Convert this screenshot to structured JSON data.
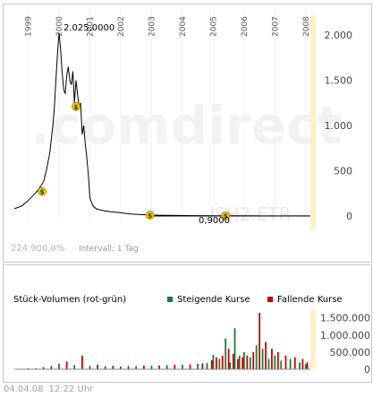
{
  "price_chart": {
    "watermark": ".comdirect",
    "ticker": "ISH2.ETR",
    "peak_label": "2.025,0000",
    "last_label": "0,9000",
    "info_value": "224.900,0%",
    "info_interval": "Intervall: 1 Tag",
    "accent_color": "#fff0c8",
    "line_color": "#000000"
  },
  "volume_chart": {
    "title": "Stück-Volumen (rot-grün)",
    "legend_up": "Steigende Kurse",
    "legend_down": "Fallende Kurse",
    "up_color": "#1a7a3a",
    "down_color": "#cc0000"
  },
  "footer": {
    "date": "04.04.08",
    "time": "12:22 Uhr"
  },
  "chart_data": [
    {
      "type": "line",
      "title": "",
      "xlabel": "",
      "ylabel": "",
      "x_ticks": [
        "1999",
        "2000",
        "2001",
        "2002",
        "2003",
        "2004",
        "2005",
        "2006",
        "2007",
        "2008"
      ],
      "x_tick_years": [
        1999,
        2000,
        2001,
        2002,
        2003,
        2004,
        2005,
        2006,
        2007,
        2008
      ],
      "y_ticks": [
        0,
        500,
        1000,
        1500,
        2000
      ],
      "y_tick_labels": [
        "0",
        "500",
        "1.000",
        "1.500",
        "2.000"
      ],
      "xlim": [
        1998.55,
        2008.15
      ],
      "ylim": [
        -60,
        2100
      ],
      "grid": false,
      "x": [
        1998.55,
        1998.8,
        1999.0,
        1999.2,
        1999.35,
        1999.5,
        1999.6,
        1999.7,
        1999.75,
        1999.8,
        1999.85,
        1999.9,
        1999.95,
        2000.0,
        2000.05,
        2000.1,
        2000.15,
        2000.2,
        2000.25,
        2000.3,
        2000.35,
        2000.4,
        2000.45,
        2000.5,
        2000.55,
        2000.6,
        2000.65,
        2000.7,
        2000.75,
        2000.8,
        2000.85,
        2000.9,
        2000.95,
        2001.0,
        2001.1,
        2001.2,
        2001.3,
        2001.5,
        2001.7,
        2002.0,
        2002.3,
        2002.6,
        2002.9,
        2003.2,
        2003.5,
        2003.8,
        2004.1,
        2004.5,
        2005.0,
        2005.3,
        2005.5,
        2005.8,
        2006.2,
        2006.6,
        2007.0,
        2007.5,
        2008.0,
        2008.1
      ],
      "values": [
        80,
        110,
        170,
        240,
        300,
        380,
        520,
        700,
        850,
        1000,
        1200,
        1500,
        1800,
        2025,
        1850,
        1600,
        1400,
        1350,
        1550,
        1650,
        1500,
        1450,
        1600,
        1250,
        1500,
        1350,
        1200,
        1250,
        900,
        1000,
        800,
        650,
        450,
        200,
        110,
        80,
        70,
        55,
        45,
        35,
        22,
        15,
        10,
        8,
        6,
        5,
        4,
        3,
        2.5,
        2,
        1.5,
        1.2,
        1,
        0.9,
        0.9,
        0.9,
        0.9,
        0.9
      ],
      "markers": [
        {
          "x": 1999.45,
          "y": 270,
          "label": "$"
        },
        {
          "x": 2000.55,
          "y": 1210,
          "label": "$"
        },
        {
          "x": 2002.95,
          "y": 10,
          "label": "$"
        },
        {
          "x": 2005.4,
          "y": 2,
          "label": "$"
        }
      ]
    },
    {
      "type": "bar",
      "title": "Stück-Volumen (rot-grün)",
      "y_ticks": [
        0,
        500000,
        1000000,
        1500000
      ],
      "y_tick_labels": [
        "0",
        "500.000",
        "1.000.000",
        "1.500.000"
      ],
      "ylim": [
        0,
        1650000
      ],
      "xlim": [
        1998.55,
        2008.15
      ],
      "series": [
        {
          "name": "Steigende Kurse",
          "x": [
            1999.0,
            1999.5,
            2000.0,
            2000.5,
            2001.0,
            2001.5,
            2002.0,
            2002.5,
            2003.0,
            2003.5,
            2004.0,
            2004.5,
            2004.8,
            2005.0,
            2005.2,
            2005.4,
            2005.55,
            2005.7,
            2005.85,
            2006.0,
            2006.2,
            2006.4,
            2006.6,
            2006.8,
            2007.0,
            2007.2,
            2007.5,
            2007.8,
            2008.0
          ],
          "values": [
            30000,
            60000,
            160000,
            120000,
            100000,
            90000,
            80000,
            90000,
            100000,
            120000,
            130000,
            160000,
            180000,
            420000,
            300000,
            900000,
            200000,
            1200000,
            400000,
            500000,
            350000,
            700000,
            600000,
            300000,
            400000,
            250000,
            300000,
            200000,
            150000
          ]
        },
        {
          "name": "Fallende Kurse",
          "x": [
            1999.25,
            1999.75,
            2000.25,
            2000.75,
            2001.25,
            2001.75,
            2002.25,
            2002.75,
            2003.25,
            2003.75,
            2004.25,
            2004.65,
            2004.95,
            2005.1,
            2005.3,
            2005.5,
            2005.65,
            2005.8,
            2005.95,
            2006.1,
            2006.3,
            2006.5,
            2006.7,
            2006.9,
            2007.1,
            2007.35,
            2007.65,
            2007.9,
            2008.05
          ],
          "values": [
            25000,
            90000,
            220000,
            400000,
            130000,
            100000,
            90000,
            110000,
            110000,
            130000,
            140000,
            170000,
            260000,
            350000,
            400000,
            600000,
            450000,
            300000,
            350000,
            400000,
            500000,
            1650000,
            800000,
            600000,
            500000,
            400000,
            350000,
            300000,
            200000
          ]
        }
      ]
    }
  ]
}
